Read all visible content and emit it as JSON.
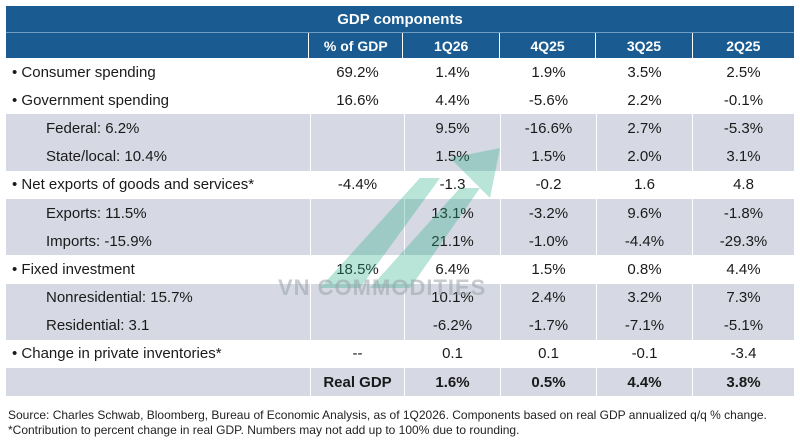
{
  "title": "GDP components",
  "columns": [
    "",
    "% of GDP",
    "1Q26",
    "4Q25",
    "3Q25",
    "2Q25"
  ],
  "rows": [
    {
      "label": "• Consumer spending",
      "share": "69.2%",
      "q1": "1.4%",
      "q2": "1.9%",
      "q3": "3.5%",
      "q4": "2.5%"
    },
    {
      "label": "• Government spending",
      "share": "16.6%",
      "q1": "4.4%",
      "q2": "-5.6%",
      "q3": "2.2%",
      "q4": "-0.1%"
    },
    {
      "label": "Federal: 6.2%",
      "share": "",
      "q1": "9.5%",
      "q2": "-16.6%",
      "q3": "2.7%",
      "q4": "-5.3%"
    },
    {
      "label": "State/local: 10.4%",
      "share": "",
      "q1": "1.5%",
      "q2": "1.5%",
      "q3": "2.0%",
      "q4": "3.1%"
    },
    {
      "label": "• Net exports of goods and services*",
      "share": "-4.4%",
      "q1": "-1.3",
      "q2": "-0.2",
      "q3": "1.6",
      "q4": "4.8"
    },
    {
      "label": "Exports: 11.5%",
      "share": "",
      "q1": "13.1%",
      "q2": "-3.2%",
      "q3": "9.6%",
      "q4": "-1.8%"
    },
    {
      "label": "Imports: -15.9%",
      "share": "",
      "q1": "21.1%",
      "q2": "-1.0%",
      "q3": "-4.4%",
      "q4": "-29.3%"
    },
    {
      "label": "• Fixed investment",
      "share": "18.5%",
      "q1": "6.4%",
      "q2": "1.5%",
      "q3": "0.8%",
      "q4": "4.4%"
    },
    {
      "label": "Nonresidential: 15.7%",
      "share": "",
      "q1": "10.1%",
      "q2": "2.4%",
      "q3": "3.2%",
      "q4": "7.3%"
    },
    {
      "label": "Residential: 3.1",
      "share": "",
      "q1": "-6.2%",
      "q2": "-1.7%",
      "q3": "-7.1%",
      "q4": "-5.1%"
    },
    {
      "label": "• Change in private inventories*",
      "share": "--",
      "q1": "0.1",
      "q2": "0.1",
      "q3": "-0.1",
      "q4": "-3.4"
    }
  ],
  "total": {
    "label": "Real GDP",
    "q1": "1.6%",
    "q2": "0.5%",
    "q3": "4.4%",
    "q4": "3.8%"
  },
  "footnote": "Source: Charles Schwab, Bloomberg, Bureau of Economic Analysis, as of 1Q2026. Components based on real GDP annualized q/q % change. *Contribution to percent change in real GDP. Numbers may not add up to 100% due to rounding.",
  "watermark": "VN COMMODITIES"
}
